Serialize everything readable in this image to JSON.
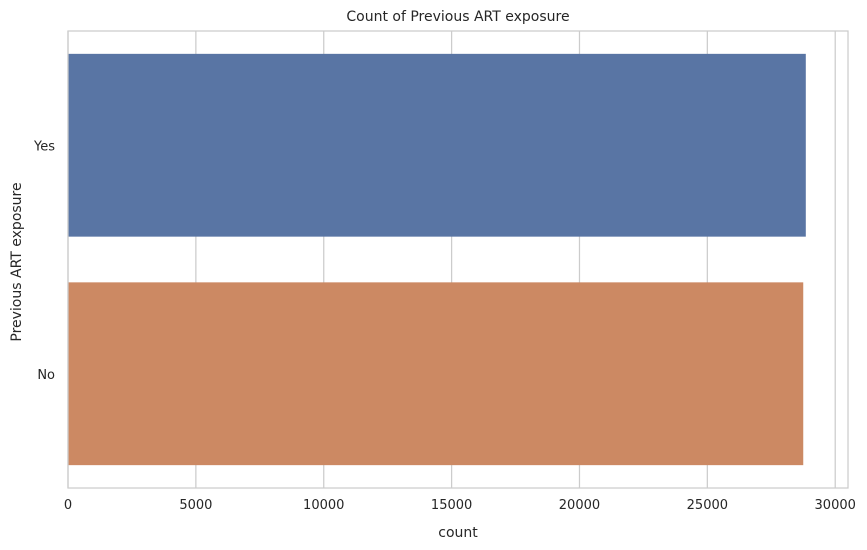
{
  "chart_data": {
    "type": "bar",
    "orientation": "horizontal",
    "title": "Count of Previous ART exposure",
    "xlabel": "count",
    "ylabel": "Previous ART exposure",
    "categories": [
      "Yes",
      "No"
    ],
    "values": [
      28850,
      28750
    ],
    "xlim": [
      0,
      30500
    ],
    "xticks": [
      0,
      5000,
      10000,
      15000,
      20000,
      25000,
      30000
    ],
    "grid": true,
    "colors": [
      "#5975a4",
      "#cc8963"
    ]
  }
}
